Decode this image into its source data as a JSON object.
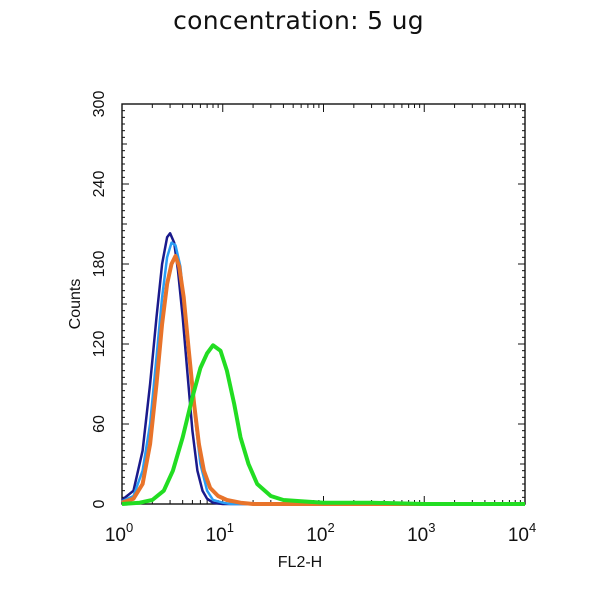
{
  "chart_data": {
    "type": "line",
    "title": "concentration: 5 ug",
    "xlabel": "FL2-H",
    "ylabel": "Counts",
    "x_scale": "log",
    "xlim": [
      1,
      10000
    ],
    "ylim": [
      0,
      300
    ],
    "y_ticks": [
      0,
      60,
      120,
      180,
      240,
      300
    ],
    "y_tick_labels": [
      "0",
      "60",
      "120",
      "180",
      "240",
      "300"
    ],
    "x_ticks": [
      1,
      10,
      100,
      1000,
      10000
    ],
    "x_tick_labels": [
      {
        "base": "10",
        "exp": "0"
      },
      {
        "base": "10",
        "exp": "1"
      },
      {
        "base": "10",
        "exp": "2"
      },
      {
        "base": "10",
        "exp": "3"
      },
      {
        "base": "10",
        "exp": "4"
      }
    ],
    "grid": false,
    "legend": "none",
    "series": [
      {
        "color": "#1a1a8c",
        "points": [
          [
            1,
            3
          ],
          [
            1.3,
            10
          ],
          [
            1.6,
            40
          ],
          [
            1.9,
            90
          ],
          [
            2.2,
            140
          ],
          [
            2.5,
            180
          ],
          [
            2.8,
            200
          ],
          [
            3.0,
            203
          ],
          [
            3.3,
            196
          ],
          [
            3.6,
            175
          ],
          [
            4.0,
            140
          ],
          [
            4.5,
            95
          ],
          [
            5.0,
            55
          ],
          [
            5.6,
            25
          ],
          [
            6.3,
            10
          ],
          [
            7.0,
            4
          ],
          [
            8.0,
            1
          ],
          [
            10,
            0
          ],
          [
            10000,
            0
          ]
        ]
      },
      {
        "color": "#2a9df4",
        "points": [
          [
            1,
            2
          ],
          [
            1.3,
            6
          ],
          [
            1.6,
            25
          ],
          [
            1.9,
            60
          ],
          [
            2.2,
            110
          ],
          [
            2.5,
            155
          ],
          [
            2.8,
            185
          ],
          [
            3.1,
            196
          ],
          [
            3.4,
            194
          ],
          [
            3.8,
            178
          ],
          [
            4.2,
            145
          ],
          [
            4.8,
            100
          ],
          [
            5.4,
            60
          ],
          [
            6.0,
            30
          ],
          [
            7.0,
            10
          ],
          [
            8.0,
            3
          ],
          [
            10,
            1
          ],
          [
            12,
            0
          ],
          [
            10000,
            0
          ]
        ]
      },
      {
        "color": "#e8732a",
        "points": [
          [
            1,
            1
          ],
          [
            1.3,
            4
          ],
          [
            1.6,
            15
          ],
          [
            1.9,
            45
          ],
          [
            2.2,
            90
          ],
          [
            2.5,
            135
          ],
          [
            2.8,
            165
          ],
          [
            3.1,
            180
          ],
          [
            3.4,
            186
          ],
          [
            3.7,
            178
          ],
          [
            4.1,
            155
          ],
          [
            4.6,
            115
          ],
          [
            5.2,
            75
          ],
          [
            5.8,
            45
          ],
          [
            6.5,
            25
          ],
          [
            7.5,
            12
          ],
          [
            9,
            6
          ],
          [
            11,
            3
          ],
          [
            15,
            1
          ],
          [
            20,
            0
          ],
          [
            10000,
            0
          ]
        ]
      },
      {
        "color": "#22dd22",
        "points": [
          [
            1,
            0
          ],
          [
            1.5,
            1
          ],
          [
            2,
            3
          ],
          [
            2.6,
            10
          ],
          [
            3.2,
            25
          ],
          [
            4.0,
            50
          ],
          [
            5.0,
            80
          ],
          [
            6.0,
            102
          ],
          [
            7.0,
            113
          ],
          [
            8.0,
            119
          ],
          [
            9.5,
            115
          ],
          [
            11,
            100
          ],
          [
            13,
            75
          ],
          [
            15,
            50
          ],
          [
            18,
            30
          ],
          [
            22,
            15
          ],
          [
            30,
            6
          ],
          [
            40,
            3
          ],
          [
            60,
            2
          ],
          [
            100,
            1
          ],
          [
            300,
            1
          ],
          [
            1000,
            0
          ],
          [
            10000,
            0
          ]
        ]
      }
    ]
  }
}
